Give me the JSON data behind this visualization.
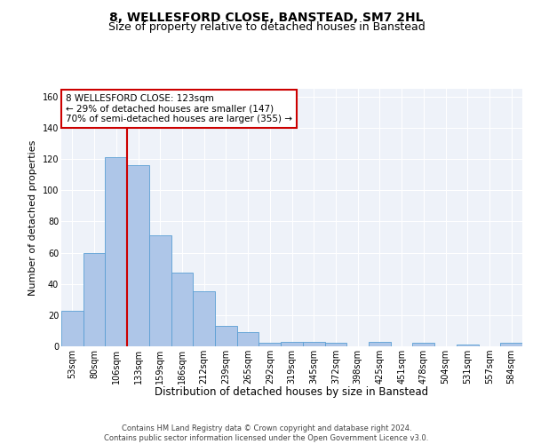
{
  "title1": "8, WELLESFORD CLOSE, BANSTEAD, SM7 2HL",
  "title2": "Size of property relative to detached houses in Banstead",
  "xlabel": "Distribution of detached houses by size in Banstead",
  "ylabel": "Number of detached properties",
  "bin_labels": [
    "53sqm",
    "80sqm",
    "106sqm",
    "133sqm",
    "159sqm",
    "186sqm",
    "212sqm",
    "239sqm",
    "265sqm",
    "292sqm",
    "319sqm",
    "345sqm",
    "372sqm",
    "398sqm",
    "425sqm",
    "451sqm",
    "478sqm",
    "504sqm",
    "531sqm",
    "557sqm",
    "584sqm"
  ],
  "bar_heights": [
    23,
    60,
    121,
    116,
    71,
    47,
    35,
    13,
    9,
    2,
    3,
    3,
    2,
    0,
    3,
    0,
    2,
    0,
    1,
    0,
    2
  ],
  "bar_color": "#aec6e8",
  "bar_edge_color": "#5a9fd4",
  "vline_x": 2.5,
  "annotation_text": "8 WELLESFORD CLOSE: 123sqm\n← 29% of detached houses are smaller (147)\n70% of semi-detached houses are larger (355) →",
  "annotation_box_color": "#ffffff",
  "annotation_box_edge_color": "#cc0000",
  "vline_color": "#cc0000",
  "ylim": [
    0,
    165
  ],
  "yticks": [
    0,
    20,
    40,
    60,
    80,
    100,
    120,
    140,
    160
  ],
  "footer_text": "Contains HM Land Registry data © Crown copyright and database right 2024.\nContains public sector information licensed under the Open Government Licence v3.0.",
  "bg_color": "#eef2f9",
  "grid_color": "#ffffff",
  "title1_fontsize": 10,
  "title2_fontsize": 9,
  "xlabel_fontsize": 8.5,
  "ylabel_fontsize": 8,
  "tick_fontsize": 7,
  "annotation_fontsize": 7.5
}
